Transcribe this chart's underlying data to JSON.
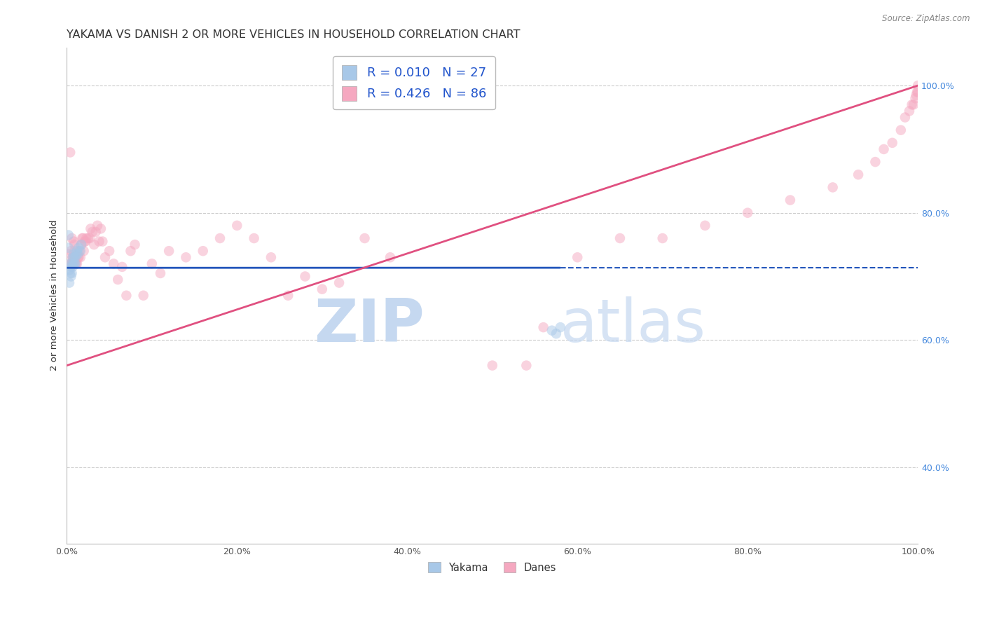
{
  "title": "YAKAMA VS DANISH 2 OR MORE VEHICLES IN HOUSEHOLD CORRELATION CHART",
  "source": "Source: ZipAtlas.com",
  "ylabel": "2 or more Vehicles in Household",
  "watermark_zip": "ZIP",
  "watermark_atlas": "atlas",
  "legend_yakama_r": "R = 0.010",
  "legend_yakama_n": "N = 27",
  "legend_danes_r": "R = 0.426",
  "legend_danes_n": "N = 86",
  "yakama_color": "#a8c8e8",
  "danes_color": "#f5a8c0",
  "yakama_line_color": "#2255bb",
  "danes_line_color": "#e05080",
  "r_n_color": "#2255cc",
  "title_color": "#333333",
  "axis_label_color": "#333333",
  "right_tick_color": "#4488dd",
  "watermark_color": "#c5d8f0",
  "background_color": "#ffffff",
  "grid_color": "#cccccc",
  "xlim": [
    0.0,
    1.0
  ],
  "ylim": [
    0.28,
    1.06
  ],
  "yakama_x": [
    0.002,
    0.002,
    0.003,
    0.003,
    0.004,
    0.004,
    0.005,
    0.005,
    0.006,
    0.006,
    0.007,
    0.007,
    0.008,
    0.008,
    0.009,
    0.009,
    0.01,
    0.01,
    0.011,
    0.012,
    0.013,
    0.014,
    0.016,
    0.017,
    0.57,
    0.575,
    0.58
  ],
  "yakama_y": [
    0.745,
    0.765,
    0.69,
    0.71,
    0.705,
    0.72,
    0.7,
    0.715,
    0.705,
    0.72,
    0.715,
    0.73,
    0.72,
    0.735,
    0.72,
    0.73,
    0.72,
    0.73,
    0.735,
    0.74,
    0.735,
    0.745,
    0.74,
    0.75,
    0.615,
    0.61,
    0.62
  ],
  "danes_x": [
    0.003,
    0.004,
    0.004,
    0.005,
    0.005,
    0.006,
    0.006,
    0.007,
    0.007,
    0.008,
    0.008,
    0.009,
    0.009,
    0.01,
    0.01,
    0.011,
    0.012,
    0.013,
    0.014,
    0.015,
    0.016,
    0.017,
    0.018,
    0.019,
    0.02,
    0.021,
    0.022,
    0.023,
    0.025,
    0.027,
    0.028,
    0.03,
    0.032,
    0.034,
    0.036,
    0.038,
    0.04,
    0.042,
    0.045,
    0.05,
    0.055,
    0.06,
    0.065,
    0.07,
    0.075,
    0.08,
    0.09,
    0.1,
    0.11,
    0.12,
    0.14,
    0.16,
    0.18,
    0.2,
    0.22,
    0.24,
    0.26,
    0.28,
    0.3,
    0.32,
    0.35,
    0.38,
    0.5,
    0.54,
    0.56,
    0.6,
    0.65,
    0.7,
    0.75,
    0.8,
    0.85,
    0.9,
    0.93,
    0.95,
    0.96,
    0.97,
    0.98,
    0.985,
    0.99,
    0.993,
    0.995,
    0.997,
    0.998,
    0.999,
    1.0,
    1.0
  ],
  "danes_y": [
    0.735,
    0.895,
    0.72,
    0.74,
    0.72,
    0.76,
    0.72,
    0.73,
    0.72,
    0.73,
    0.755,
    0.75,
    0.74,
    0.73,
    0.72,
    0.72,
    0.72,
    0.73,
    0.73,
    0.74,
    0.73,
    0.75,
    0.76,
    0.76,
    0.74,
    0.755,
    0.755,
    0.76,
    0.76,
    0.76,
    0.775,
    0.77,
    0.75,
    0.77,
    0.78,
    0.755,
    0.775,
    0.755,
    0.73,
    0.74,
    0.72,
    0.695,
    0.715,
    0.67,
    0.74,
    0.75,
    0.67,
    0.72,
    0.705,
    0.74,
    0.73,
    0.74,
    0.76,
    0.78,
    0.76,
    0.73,
    0.67,
    0.7,
    0.68,
    0.69,
    0.76,
    0.73,
    0.56,
    0.56,
    0.62,
    0.73,
    0.76,
    0.76,
    0.78,
    0.8,
    0.82,
    0.84,
    0.86,
    0.88,
    0.9,
    0.91,
    0.93,
    0.95,
    0.96,
    0.97,
    0.97,
    0.98,
    0.985,
    0.99,
    0.99,
    1.0
  ],
  "xtick_labels": [
    "0.0%",
    "20.0%",
    "40.0%",
    "60.0%",
    "80.0%",
    "100.0%"
  ],
  "xtick_vals": [
    0.0,
    0.2,
    0.4,
    0.6,
    0.8,
    1.0
  ],
  "ytick_right_vals": [
    0.4,
    0.6,
    0.8,
    1.0
  ],
  "ytick_right_labels": [
    "40.0%",
    "60.0%",
    "80.0%",
    "100.0%"
  ],
  "marker_size": 110,
  "marker_alpha": 0.5,
  "title_fontsize": 11.5,
  "axis_label_fontsize": 9.5,
  "tick_fontsize": 9,
  "legend_fontsize": 13
}
